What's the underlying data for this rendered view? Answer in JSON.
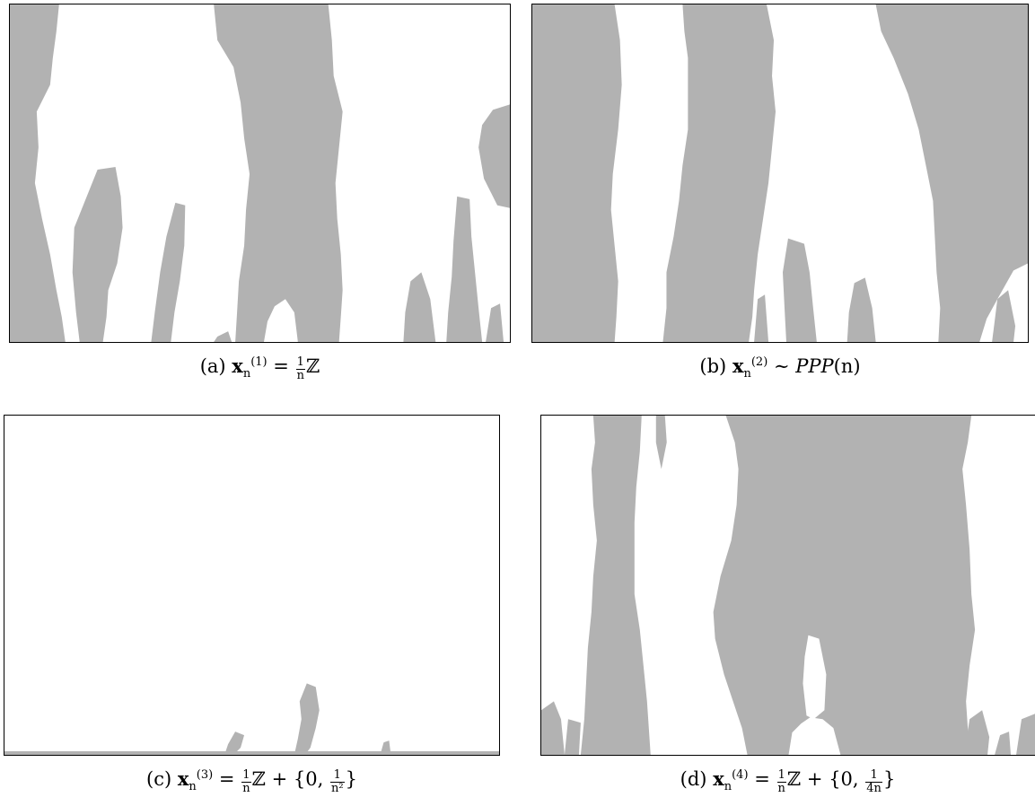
{
  "fill_color": "#b2b2b2",
  "panels": [
    {
      "id": "a",
      "label": "(a)",
      "caption": "x_n^(1) = 1/n ℤ"
    },
    {
      "id": "b",
      "label": "(b)",
      "caption": "x_n^(2) ~ PPP(n)"
    },
    {
      "id": "c",
      "label": "(c)",
      "caption": "x_n^(3) = 1/n ℤ + {0, 1/n²}"
    },
    {
      "id": "d",
      "label": "(d)",
      "caption": "x_n^(4) = 1/n ℤ + {0, 1/(4n)}"
    }
  ],
  "captions": {
    "a": {
      "label": "(a)",
      "var": "x",
      "sub": "n",
      "sup": "(1)",
      "rel": "=",
      "num": "1",
      "den": "n",
      "set": "ℤ"
    },
    "b": {
      "label": "(b)",
      "var": "x",
      "sub": "n",
      "sup": "(2)",
      "rel": "∼",
      "rhs": "PPP",
      "arg": "(n)"
    },
    "c": {
      "label": "(c)",
      "var": "x",
      "sub": "n",
      "sup": "(3)",
      "rel": "=",
      "num": "1",
      "den": "n",
      "set": "ℤ",
      "plus": "+ {0,",
      "num2": "1",
      "den2": "n²",
      "close": "}"
    },
    "d": {
      "label": "(d)",
      "var": "x",
      "sub": "n",
      "sup": "(4)",
      "rel": "=",
      "num": "1",
      "den": "n",
      "set": "ℤ",
      "plus": "+ {0,",
      "num2": "1",
      "den2": "4n",
      "close": "}"
    }
  }
}
